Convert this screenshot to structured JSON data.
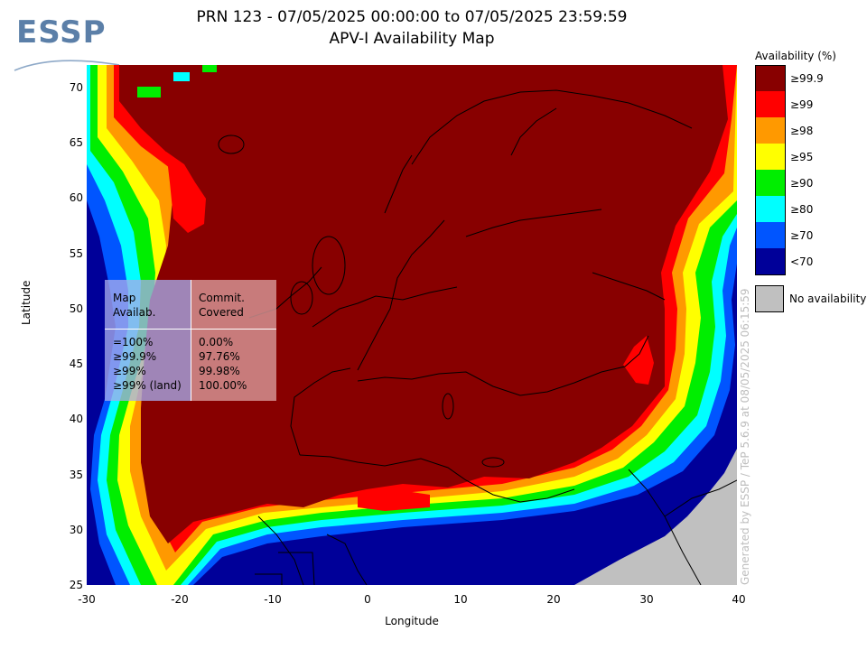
{
  "logo": {
    "text": "ESSP"
  },
  "title": {
    "line1": "PRN 123 - 07/05/2025 00:00:00 to 07/05/2025 23:59:59",
    "line2": "APV-I Availability Map"
  },
  "axes": {
    "xlabel": "Longitude",
    "ylabel": "Latitude",
    "x_ticks": [
      "-30",
      "-20",
      "-10",
      "0",
      "10",
      "20",
      "30",
      "40"
    ],
    "y_ticks": [
      "70",
      "65",
      "60",
      "55",
      "50",
      "45",
      "40",
      "35",
      "30",
      "25"
    ],
    "x_range": [
      -30,
      40
    ],
    "y_range": [
      25,
      72
    ]
  },
  "legend": {
    "title": "Availability (%)",
    "items": [
      {
        "label": "≥99.9",
        "color": "#880000"
      },
      {
        "label": "≥99",
        "color": "#ff0000"
      },
      {
        "label": "≥98",
        "color": "#ff9900"
      },
      {
        "label": "≥95",
        "color": "#ffff00"
      },
      {
        "label": "≥90",
        "color": "#00ee00"
      },
      {
        "label": "≥80",
        "color": "#00ffff"
      },
      {
        "label": "≥70",
        "color": "#0055ff"
      },
      {
        "label": "<70",
        "color": "#000099"
      }
    ],
    "no_availability": {
      "label": "No availability",
      "color": "#c0c0c0"
    }
  },
  "stats": {
    "header_left": "Map\nAvailab.",
    "header_right": "Commit.\nCovered",
    "rows_left": "=100%\n≥99.9%\n≥99%\n≥99% (land)",
    "rows_right": "0.00%\n97.76%\n99.98%\n100.00%"
  },
  "generated_text": "Generated by ESSP / TeP 5.6.9 at 08/05/2025 06:15:59"
}
